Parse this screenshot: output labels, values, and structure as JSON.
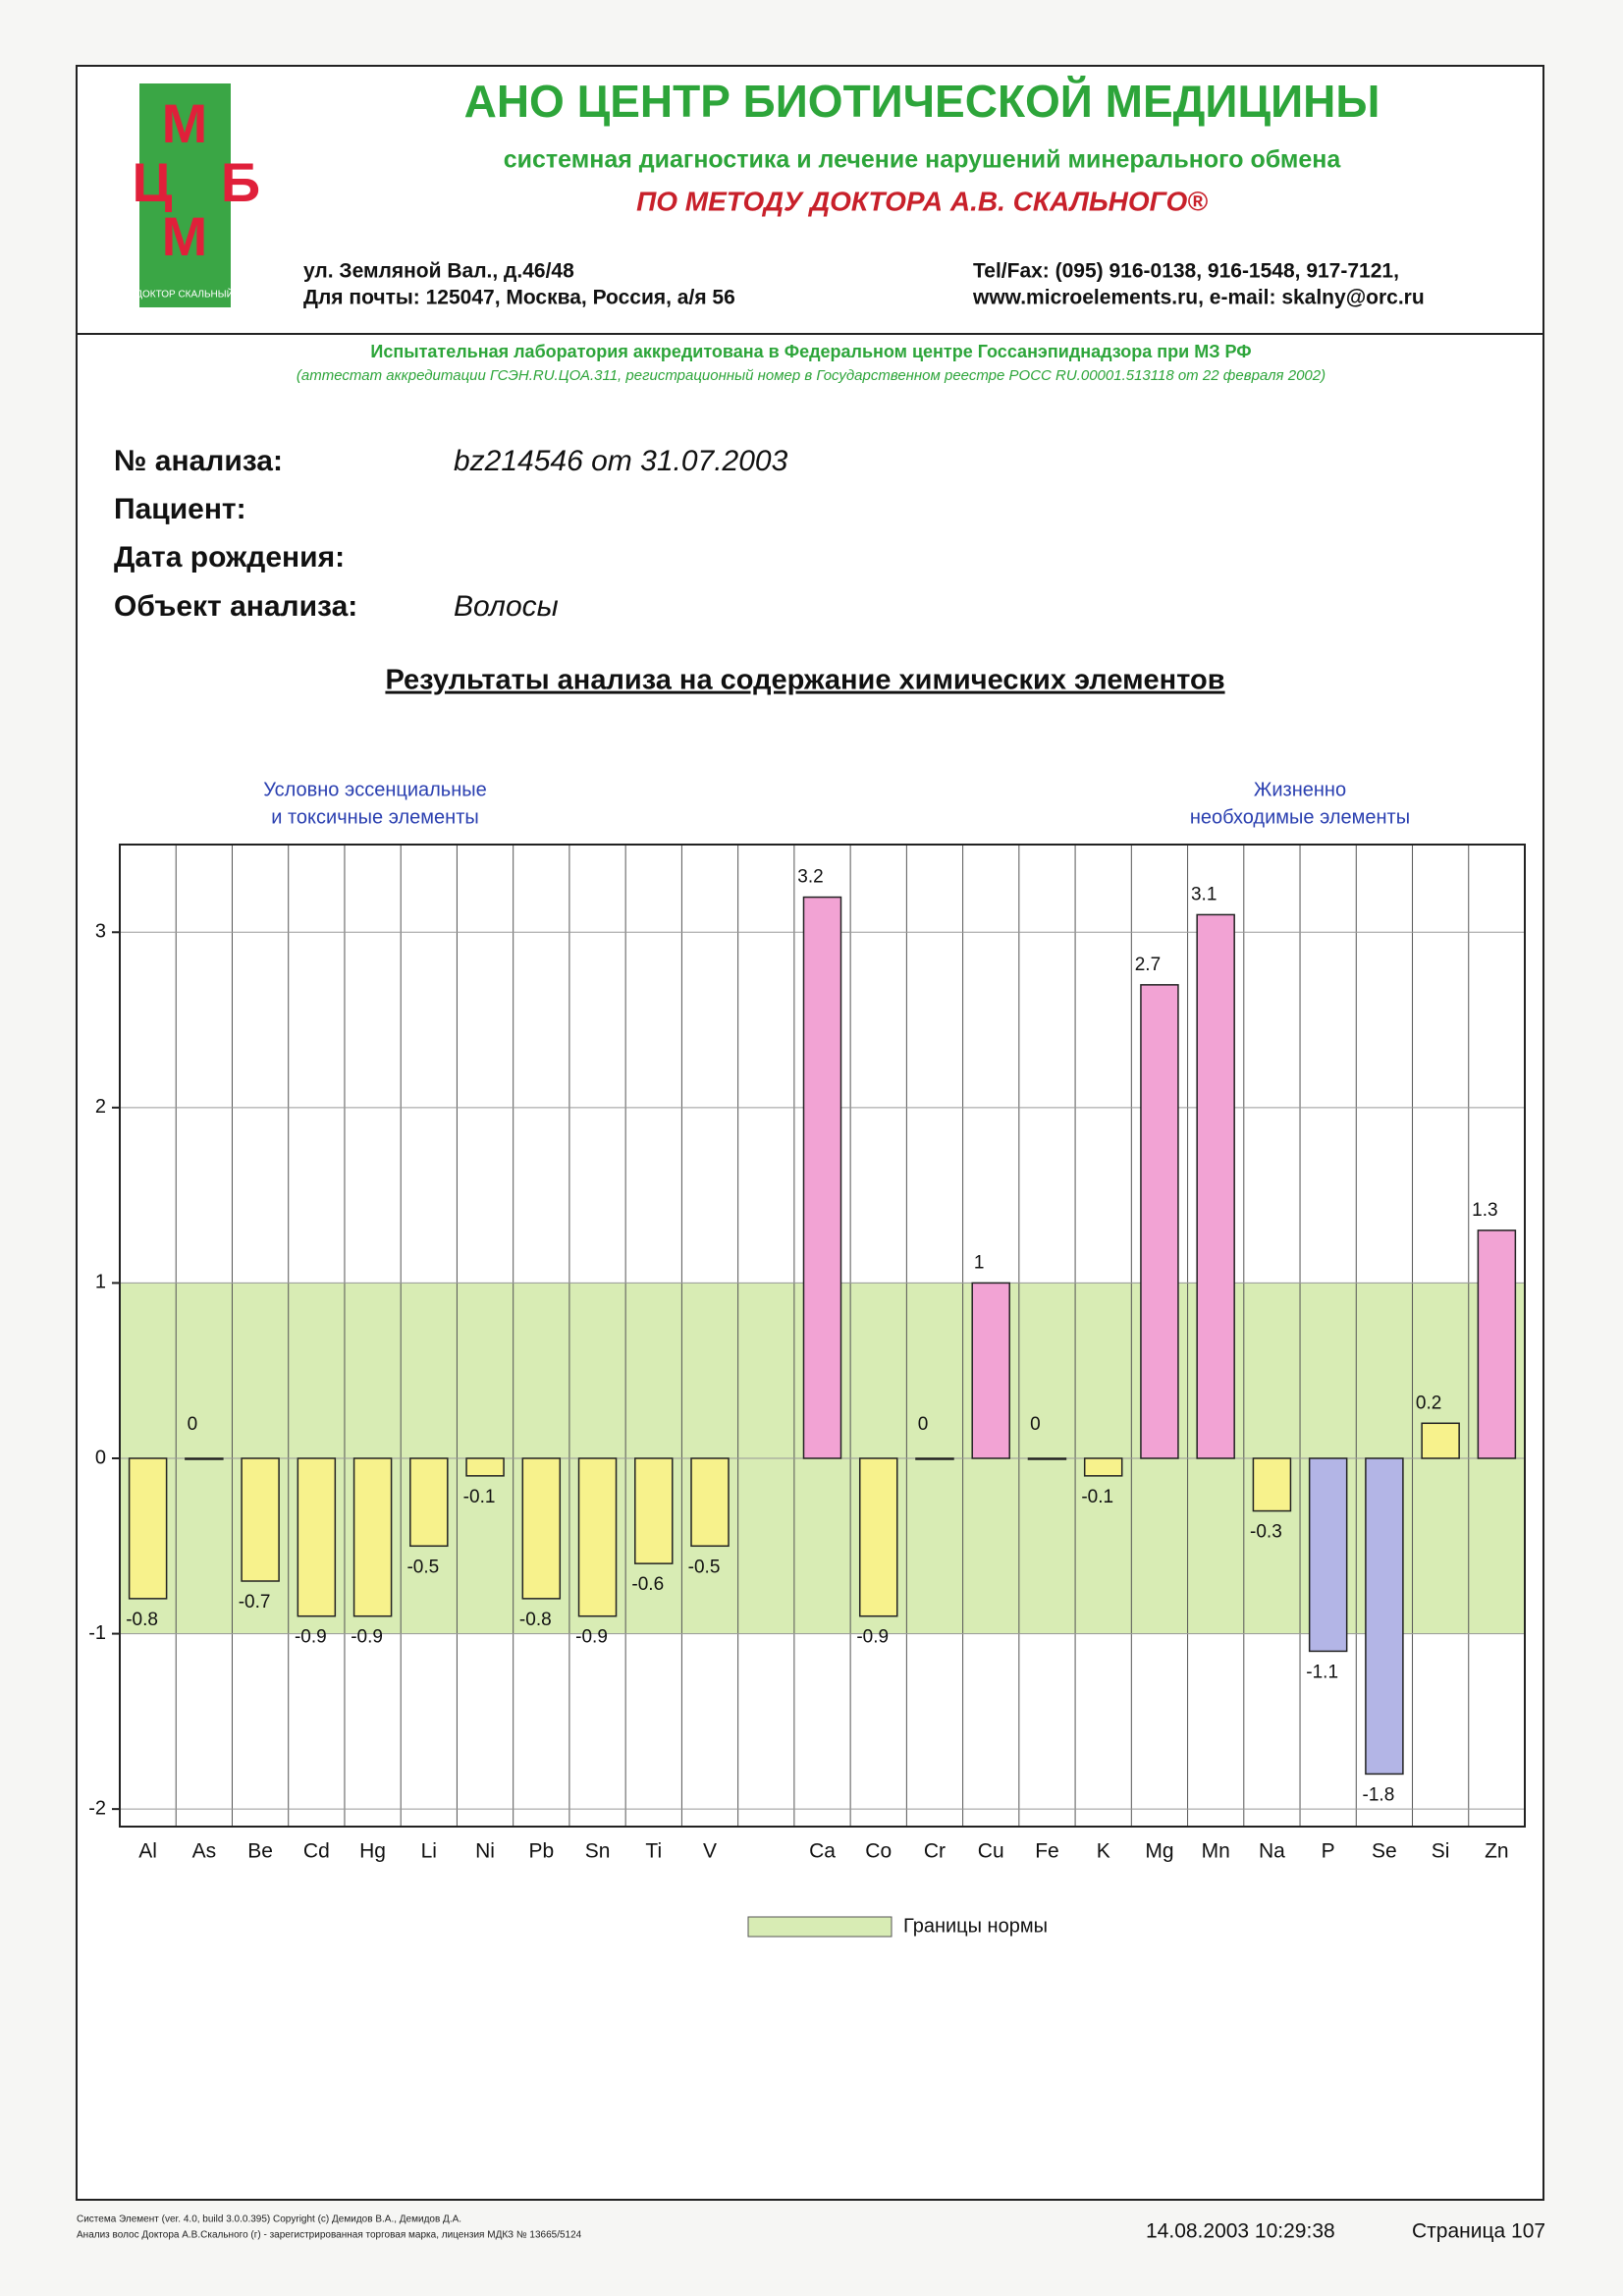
{
  "header": {
    "logo": {
      "letters": [
        "М",
        "Ц",
        "Б",
        "М"
      ],
      "caption": "ДОКТОР СКАЛЬНЫЙ"
    },
    "title": "АНО ЦЕНТР БИОТИЧЕСКОЙ МЕДИЦИНЫ",
    "subtitle": "системная диагностика и лечение нарушений минерального обмена",
    "method": "ПО МЕТОДУ ДОКТОРА  А.В. СКАЛЬНОГО®",
    "address": [
      "ул. Земляной Вал., д.46/48",
      "Для почты: 125047, Москва, Россия, а/я 56"
    ],
    "contacts": [
      "Tel/Fax: (095) 916-0138, 916-1548, 917-7121,",
      "www.microelements.ru, e-mail: skalny@orc.ru"
    ],
    "accreditation": "Испытательная лаборатория аккредитована в Федеральном центре Госсанэпиднадзора при МЗ РФ",
    "certificate": "(аттестат аккредитации ГСЭН.RU.ЦОА.311, регистрационный номер в Государственном реестре РОСС RU.00001.513118 от 22 февраля 2002)"
  },
  "fields": [
    {
      "label": "№ анализа:",
      "value": "bz214546 от 31.07.2003"
    },
    {
      "label": "Пациент:"
    },
    {
      "label": "Дата рождения:"
    },
    {
      "label": "Объект анализа:",
      "value": "Волосы"
    }
  ],
  "chart_data": {
    "type": "bar",
    "title": "Результаты анализа на содержание химических элементов",
    "annotations": [
      [
        "Условно эссенциальные",
        "и токсичные элементы"
      ],
      [
        "Жизненно",
        "необходимые элементы"
      ]
    ],
    "categories": [
      "Al",
      "As",
      "Be",
      "Cd",
      "Hg",
      "Li",
      "Ni",
      "Pb",
      "Sn",
      "Ti",
      "V",
      null,
      "Ca",
      "Co",
      "Cr",
      "Cu",
      "Fe",
      "K",
      "Mg",
      "Mn",
      "Na",
      "P",
      "Se",
      "Si",
      "Zn"
    ],
    "values": [
      -0.8,
      0,
      -0.7,
      -0.9,
      -0.9,
      -0.5,
      -0.1,
      -0.8,
      -0.9,
      -0.6,
      -0.5,
      null,
      3.2,
      -0.9,
      0,
      1,
      0,
      -0.1,
      2.7,
      3.1,
      -0.3,
      -1.1,
      -1.8,
      0.2,
      1.3
    ],
    "colors": [
      "#f7f28c",
      "#f7f28c",
      "#f7f28c",
      "#f7f28c",
      "#f7f28c",
      "#f7f28c",
      "#f7f28c",
      "#f7f28c",
      "#f7f28c",
      "#f7f28c",
      "#f7f28c",
      null,
      "#f2a3d4",
      "#f7f28c",
      "#f7f28c",
      "#f2a3d4",
      "#f7f28c",
      "#f7f28c",
      "#f2a3d4",
      "#f2a3d4",
      "#f7f28c",
      "#b3b5e6",
      "#b3b5e6",
      "#f7f28c",
      "#f2a3d4"
    ],
    "ylim": [
      -2.1,
      3.5
    ],
    "yticks": [
      -2,
      -1,
      0,
      1,
      2,
      3
    ],
    "grid": true,
    "norm_band": {
      "label": "Границы нормы",
      "range": [
        -1,
        1
      ],
      "color": "#d8ecb4"
    }
  },
  "footer": {
    "software": [
      "Система Элемент (ver. 4.0, build 3.0.0.395) Copyright (c) Демидов В.А., Демидов Д.А.",
      "Анализ волос Доктора А.В.Скального (г) - зарегистрированная торговая марка, лицензия МДКЗ № 13665/5124"
    ],
    "date": "14.08.2003 10:29:38",
    "page": "Страница 107"
  }
}
